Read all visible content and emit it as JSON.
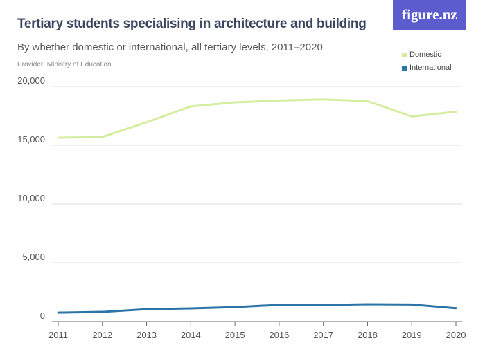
{
  "header": {
    "title": "Tertiary students specialising in architecture and building",
    "subtitle": "By whether domestic or international, all tertiary levels, 2011–2020",
    "provider": "Provider: Ministry of Education",
    "logo": "figure.nz"
  },
  "chart_data": {
    "type": "line",
    "title": "Tertiary students specialising in architecture and building",
    "x": [
      "2011",
      "2012",
      "2013",
      "2014",
      "2015",
      "2016",
      "2017",
      "2018",
      "2019",
      "2020"
    ],
    "ylim": [
      0,
      20000
    ],
    "yticks": [
      "0",
      "5,000",
      "10,000",
      "15,000",
      "20,000"
    ],
    "ytick_values": [
      0,
      5000,
      10000,
      15000,
      20000
    ],
    "grid": true,
    "legend_position": "top-right",
    "series": [
      {
        "name": "Domestic",
        "color": "#d4eea0",
        "values": [
          15650,
          15700,
          16950,
          18300,
          18650,
          18800,
          18900,
          18750,
          17450,
          17850
        ]
      },
      {
        "name": "International",
        "color": "#2a74a8",
        "values": [
          760,
          820,
          1050,
          1120,
          1230,
          1420,
          1400,
          1470,
          1450,
          1130
        ]
      }
    ]
  }
}
